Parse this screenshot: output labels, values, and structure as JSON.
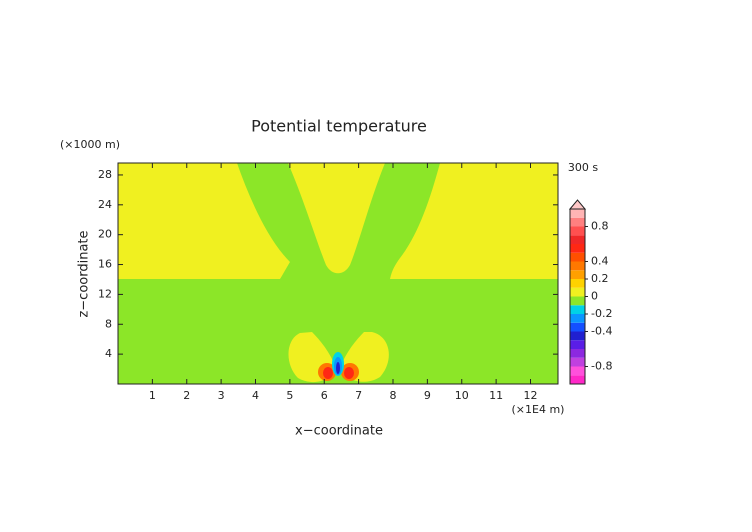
{
  "chart_data": {
    "type": "contour",
    "title": "Potential temperature",
    "xlabel": "x−coordinate",
    "ylabel": "z−coordinate",
    "x_unit": "(×1E4 m)",
    "y_unit": "(×1000 m)",
    "time_label": "300 s",
    "xlim": [
      0,
      12.8
    ],
    "ylim": [
      0,
      29.6
    ],
    "xticks": [
      1,
      2,
      3,
      4,
      5,
      6,
      7,
      8,
      9,
      10,
      11,
      12
    ],
    "yticks": [
      4,
      8,
      12,
      16,
      20,
      24,
      28
    ],
    "colorbar": {
      "levels": [
        -1,
        -0.9,
        -0.8,
        -0.7,
        -0.6,
        -0.5,
        -0.4,
        -0.3,
        -0.2,
        -0.1,
        0,
        0.1,
        0.2,
        0.3,
        0.4,
        0.5,
        0.6,
        0.7,
        0.8,
        0.9,
        1
      ],
      "colors": [
        "#ff28c8",
        "#ff50dc",
        "#c040e0",
        "#8c28e0",
        "#5a1ee6",
        "#2020d0",
        "#1450ff",
        "#0a96ff",
        "#00d2e6",
        "#8ce628",
        "#f0f020",
        "#ffd200",
        "#ffa000",
        "#ff7800",
        "#ff5000",
        "#ff2814",
        "#f02828",
        "#ff5050",
        "#ff8080",
        "#ffb4b4"
      ],
      "over_color": "#ffc8c8",
      "ticks": [
        -0.8,
        -0.4,
        -0.2,
        0,
        0.2,
        0.4,
        0.8
      ]
    }
  }
}
